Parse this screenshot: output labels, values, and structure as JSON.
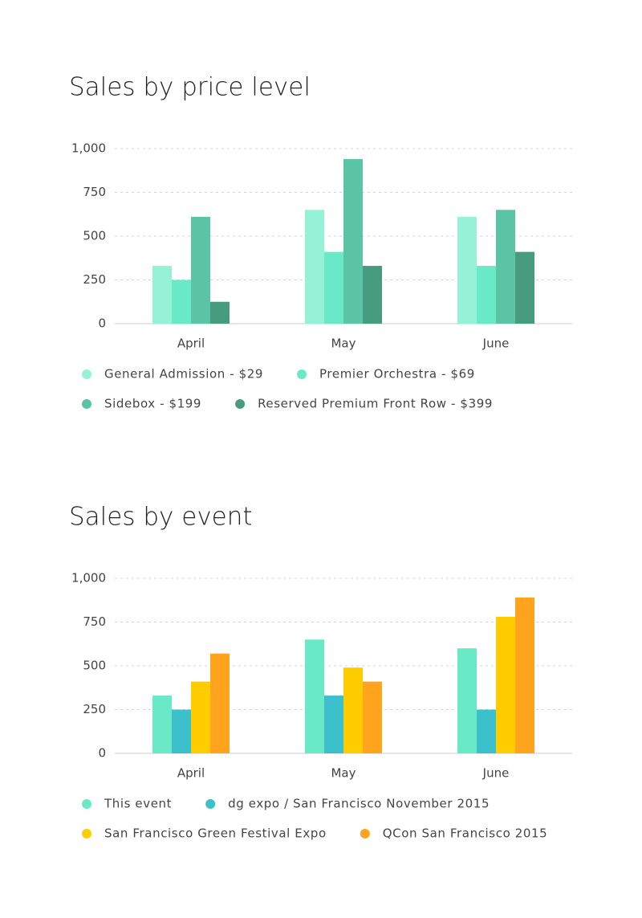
{
  "chart_data": [
    {
      "type": "bar",
      "title": "Sales by price level",
      "categories": [
        "April",
        "May",
        "June"
      ],
      "series": [
        {
          "name": "General Admission - $29",
          "color": "#96f2d7",
          "values": [
            330,
            650,
            610
          ]
        },
        {
          "name": "Premier Orchestra - $69",
          "color": "#6ae9c6",
          "values": [
            250,
            410,
            330
          ]
        },
        {
          "name": "Sidebox - $199",
          "color": "#5ac4a4",
          "values": [
            610,
            940,
            650
          ]
        },
        {
          "name": "Reserved Premium Front Row - $399",
          "color": "#479c80",
          "values": [
            125,
            330,
            410
          ]
        }
      ],
      "ylim": [
        0,
        1000
      ],
      "yticks": [
        0,
        250,
        500,
        750,
        {
          "value": 1000,
          "label": "1,000"
        }
      ],
      "grid": true
    },
    {
      "type": "bar",
      "title": "Sales by event",
      "categories": [
        "April",
        "May",
        "June"
      ],
      "series": [
        {
          "name": "This event",
          "color": "#6ae9c6",
          "values": [
            330,
            650,
            600
          ]
        },
        {
          "name": "dg expo / San Francisco November 2015",
          "color": "#3cc1cc",
          "values": [
            250,
            330,
            250
          ]
        },
        {
          "name": "San Francisco Green Festival Expo",
          "color": "#ffcc00",
          "values": [
            410,
            490,
            780
          ]
        },
        {
          "name": "QCon San Francisco 2015",
          "color": "#ffa41c",
          "values": [
            570,
            410,
            890
          ]
        }
      ],
      "ylim": [
        0,
        1000
      ],
      "yticks": [
        0,
        250,
        500,
        750,
        {
          "value": 1000,
          "label": "1,000"
        }
      ],
      "grid": true
    }
  ]
}
